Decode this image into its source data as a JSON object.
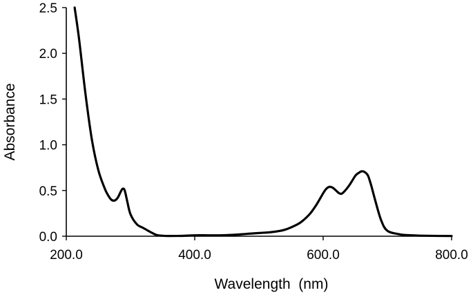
{
  "chart_data": {
    "type": "line",
    "title": "",
    "xlabel": "Wavelength  (nm)",
    "ylabel": "Absorbance",
    "xlim": [
      200,
      800
    ],
    "ylim": [
      0,
      2.5
    ],
    "x_ticks": [
      200,
      400,
      600,
      800
    ],
    "x_tick_labels": [
      "200.0",
      "400.0",
      "600.0",
      "800.0"
    ],
    "y_ticks": [
      0,
      0.5,
      1.0,
      1.5,
      2.0,
      2.5
    ],
    "y_tick_labels": [
      "0.0",
      "0.5",
      "1.0",
      "1.5",
      "2.0",
      "2.5"
    ],
    "grid": false,
    "legend": "none",
    "series": [
      {
        "x": [
          213,
          220,
          230,
          240,
          250,
          260,
          265,
          270,
          275,
          280,
          285,
          288,
          291,
          295,
          300,
          310,
          320,
          330,
          340,
          350,
          360,
          380,
          400,
          420,
          440,
          460,
          480,
          500,
          520,
          540,
          560,
          570,
          580,
          590,
          600,
          605,
          610,
          615,
          620,
          625,
          630,
          640,
          650,
          655,
          660,
          665,
          670,
          675,
          680,
          690,
          700,
          720,
          740,
          760,
          800
        ],
        "y": [
          2.5,
          2.15,
          1.55,
          1.05,
          0.72,
          0.52,
          0.45,
          0.4,
          0.39,
          0.42,
          0.49,
          0.52,
          0.5,
          0.38,
          0.24,
          0.13,
          0.09,
          0.05,
          0.015,
          0.005,
          0.003,
          0.004,
          0.01,
          0.01,
          0.01,
          0.015,
          0.025,
          0.035,
          0.045,
          0.07,
          0.13,
          0.18,
          0.25,
          0.35,
          0.47,
          0.52,
          0.54,
          0.53,
          0.5,
          0.47,
          0.47,
          0.55,
          0.66,
          0.69,
          0.71,
          0.7,
          0.66,
          0.55,
          0.42,
          0.18,
          0.06,
          0.02,
          0.01,
          0.005,
          0.002
        ]
      }
    ]
  }
}
